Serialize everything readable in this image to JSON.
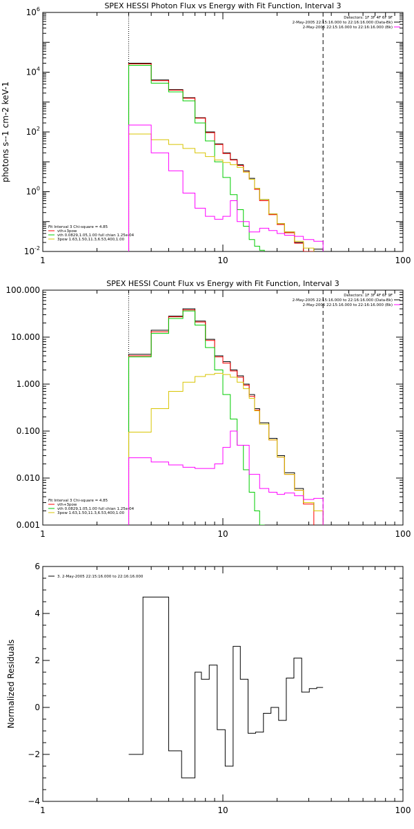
{
  "chart_data": [
    {
      "type": "line",
      "title": "SPEX HESSI Photon Flux vs Energy with Fit Function, Interval 3",
      "ylabel": "photons s$^{-1}$ cm$^{-2}$ keV$^{-1}$",
      "xlabel": "",
      "xscale": "log",
      "yscale": "log",
      "xlim": [
        1,
        100
      ],
      "ylim": [
        0.01,
        1000000
      ],
      "xticks": [
        "1",
        "10",
        "100"
      ],
      "yticks": [
        {
          "v": 0.01,
          "b": "10",
          "e": "-2"
        },
        {
          "v": 1,
          "b": "10",
          "e": "0"
        },
        {
          "v": 100,
          "b": "10",
          "e": "2"
        },
        {
          "v": 10000,
          "b": "10",
          "e": "4"
        },
        {
          "v": 1000000,
          "b": "10",
          "e": "6"
        }
      ],
      "vlines": [
        {
          "x": 3,
          "style": "dotted"
        },
        {
          "x": 36,
          "style": "dashed"
        }
      ],
      "legend_right": [
        {
          "text": "Detectors: 1F 3F 4F 6F 9F",
          "color": ""
        },
        {
          "text": "2-May-2005 22:15:16.000 to 22:16:16.000 (Data-Bk)",
          "color": "#000000"
        },
        {
          "text": "2-May-2005 22:15:16.000 to 22:16:16.000 (Bk)",
          "color": "#ff00ff"
        }
      ],
      "legend_left": [
        {
          "text": "Fit Interval 3   Chi-square = 4.85",
          "color": ""
        },
        {
          "text": "vth+3pow",
          "color": "#ff0000"
        },
        {
          "text": "vth 0.0829,1.05,1.00  full chian 1.25e-04",
          "color": "#00cc00"
        },
        {
          "text": "3pow 1.63,1.50,11.3,6.53,400,1.00",
          "color": "#d8c400"
        }
      ],
      "series": [
        {
          "color": "#000000",
          "edges": [
            3,
            4,
            5,
            6,
            7,
            8,
            9,
            10,
            11,
            12,
            13,
            14,
            15,
            16,
            18,
            20,
            22,
            25,
            28,
            32,
            36
          ],
          "values": [
            20000,
            5500,
            2600,
            1400,
            300,
            100,
            40,
            20,
            12,
            8,
            5,
            2.8,
            1.3,
            0.55,
            0.18,
            0.085,
            0.045,
            0.02,
            0.009,
            0.012
          ]
        },
        {
          "color": "#ff0000",
          "edges": [
            3,
            4,
            5,
            6,
            7,
            8,
            9,
            10,
            11,
            12,
            13,
            14,
            15,
            16,
            18,
            20,
            22,
            25,
            28,
            32
          ],
          "values": [
            19000,
            5200,
            2500,
            1350,
            290,
            95,
            38,
            19,
            11.5,
            7.5,
            4.6,
            2.6,
            1.2,
            0.5,
            0.17,
            0.08,
            0.042,
            0.019,
            0.01
          ]
        },
        {
          "color": "#00cc00",
          "edges": [
            3,
            4,
            5,
            6,
            7,
            8,
            9,
            10,
            11,
            12,
            13,
            14,
            15,
            16,
            17
          ],
          "values": [
            17000,
            4300,
            2200,
            1100,
            200,
            50,
            10,
            3,
            0.8,
            0.25,
            0.07,
            0.025,
            0.015,
            0.011
          ]
        },
        {
          "color": "#d8c400",
          "edges": [
            3,
            4,
            5,
            6,
            7,
            8,
            9,
            10,
            11,
            12,
            13,
            14,
            15,
            16,
            18,
            20,
            22,
            25,
            28,
            32,
            36
          ],
          "values": [
            85,
            55,
            38,
            28,
            20,
            15,
            11.5,
            9.5,
            8,
            6.5,
            4.5,
            2.6,
            1.3,
            0.55,
            0.18,
            0.085,
            0.045,
            0.022,
            0.013,
            0.009
          ]
        },
        {
          "color": "#ff00ff",
          "edges": [
            3,
            4,
            5,
            6,
            7,
            8,
            9,
            10,
            11,
            12,
            14,
            16,
            18,
            20,
            22,
            25,
            28,
            32,
            36
          ],
          "values": [
            170,
            20,
            5,
            0.9,
            0.28,
            0.15,
            0.12,
            0.15,
            0.5,
            0.1,
            0.045,
            0.06,
            0.05,
            0.04,
            0.035,
            0.032,
            0.025,
            0.022
          ]
        }
      ]
    },
    {
      "type": "line",
      "title": "SPEX HESSI Count Flux vs Energy with Fit Function, Interval 3",
      "xlabel": "",
      "ylabel": "",
      "xscale": "log",
      "yscale": "log",
      "xlim": [
        1,
        100
      ],
      "ylim": [
        0.001,
        100
      ],
      "xticks": [
        "1",
        "10",
        "100"
      ],
      "yticks": [
        {
          "v": 0.001,
          "t": "0.001"
        },
        {
          "v": 0.01,
          "t": "0.010"
        },
        {
          "v": 0.1,
          "t": "0.100"
        },
        {
          "v": 1,
          "t": "1.000"
        },
        {
          "v": 10,
          "t": "10.000"
        },
        {
          "v": 100,
          "t": "100.000"
        }
      ],
      "vlines": [
        {
          "x": 3,
          "style": "dotted"
        },
        {
          "x": 36,
          "style": "dashed"
        }
      ],
      "legend_right": [
        {
          "text": "Detectors: 1F 3F 4F 6F 9F",
          "color": ""
        },
        {
          "text": "2-May-2005 22:15:16.000 to 22:16:16.000 (Data-Bk)",
          "color": "#000000"
        },
        {
          "text": "2-May-2005 22:15:16.000 to 22:16:16.000 (Bk)",
          "color": "#ff00ff"
        }
      ],
      "legend_left": [
        {
          "text": "Fit Interval 3   Chi-square = 4.85",
          "color": ""
        },
        {
          "text": "vth+3pow",
          "color": "#ff0000"
        },
        {
          "text": "vth 0.0829,1.05,1.00  full chian 1.25e-04",
          "color": "#00cc00"
        },
        {
          "text": "3pow 1.63,1.50,11.3,6.53,400,1.00",
          "color": "#d8c400"
        }
      ],
      "series": [
        {
          "color": "#000000",
          "edges": [
            3,
            4,
            5,
            6,
            7,
            8,
            9,
            10,
            11,
            12,
            13,
            14,
            15,
            16,
            18,
            20,
            22,
            25,
            28,
            32,
            36
          ],
          "values": [
            4.3,
            14,
            28,
            40,
            22,
            9,
            4,
            3,
            2,
            1.5,
            1,
            0.6,
            0.3,
            0.15,
            0.07,
            0.03,
            0.013,
            0.006,
            0.003,
            0.002
          ]
        },
        {
          "color": "#ff0000",
          "edges": [
            3,
            4,
            5,
            6,
            7,
            8,
            9,
            10,
            11,
            12,
            13,
            14,
            15,
            16,
            18,
            20,
            22,
            25,
            28,
            32
          ],
          "values": [
            4,
            13,
            27,
            38,
            21,
            8.5,
            3.8,
            2.8,
            1.9,
            1.4,
            0.95,
            0.55,
            0.28,
            0.14,
            0.065,
            0.028,
            0.012,
            0.0055,
            0.0028
          ]
        },
        {
          "color": "#00cc00",
          "edges": [
            3,
            4,
            5,
            6,
            7,
            8,
            9,
            10,
            11,
            12,
            13,
            14,
            15,
            16,
            17
          ],
          "values": [
            3.8,
            12,
            25,
            36,
            18,
            6,
            2,
            0.6,
            0.18,
            0.05,
            0.015,
            0.005,
            0.002,
            0.001
          ]
        },
        {
          "color": "#d8c400",
          "edges": [
            3,
            4,
            5,
            6,
            7,
            8,
            9,
            10,
            11,
            12,
            13,
            14,
            15,
            16,
            18,
            20,
            22,
            25,
            28,
            32,
            36
          ],
          "values": [
            0.095,
            0.3,
            0.7,
            1.1,
            1.45,
            1.6,
            1.7,
            1.6,
            1.4,
            1.1,
            0.8,
            0.5,
            0.27,
            0.14,
            0.065,
            0.028,
            0.012,
            0.0055,
            0.003,
            0.002
          ]
        },
        {
          "color": "#ff00ff",
          "edges": [
            3,
            4,
            5,
            6,
            7,
            8,
            9,
            10,
            11,
            12,
            14,
            16,
            18,
            20,
            22,
            25,
            28,
            32,
            36
          ],
          "values": [
            0.027,
            0.022,
            0.019,
            0.017,
            0.016,
            0.016,
            0.02,
            0.045,
            0.1,
            0.05,
            0.012,
            0.006,
            0.005,
            0.0045,
            0.0048,
            0.0042,
            0.0035,
            0.0037
          ]
        }
      ]
    },
    {
      "type": "line",
      "title": "",
      "xlabel": "",
      "ylabel": "Normalized Residuals",
      "xscale": "log",
      "yscale": "linear",
      "xlim": [
        1,
        100
      ],
      "ylim": [
        -4,
        6
      ],
      "xticks": [
        "1",
        "10",
        "100"
      ],
      "yticks": [
        {
          "v": -4,
          "t": "−4"
        },
        {
          "v": -2,
          "t": "−2"
        },
        {
          "v": 0,
          "t": "0"
        },
        {
          "v": 2,
          "t": "2"
        },
        {
          "v": 4,
          "t": "4"
        },
        {
          "v": 6,
          "t": "6"
        }
      ],
      "legend_left": [
        {
          "text": "3. 2-May-2005 22:15:16.000 to 22:16:16.000",
          "color": "#000000"
        }
      ],
      "series": [
        {
          "color": "#000000",
          "edges": [
            3,
            3.6,
            4.2,
            5,
            5.9,
            7,
            7.6,
            8.4,
            9.3,
            10.3,
            11.4,
            12.5,
            13.8,
            15.2,
            16.8,
            18.5,
            20.4,
            22.5,
            24.8,
            27.4,
            30.2,
            33.2,
            36
          ],
          "values": [
            -2,
            4.7,
            4.7,
            -1.85,
            -3,
            1.5,
            1.2,
            1.8,
            -0.95,
            -2.5,
            2.6,
            1.2,
            -1.1,
            -1.05,
            -0.25,
            0,
            -0.55,
            1.25,
            2.1,
            0.65,
            0.8,
            0.85
          ]
        }
      ]
    }
  ]
}
